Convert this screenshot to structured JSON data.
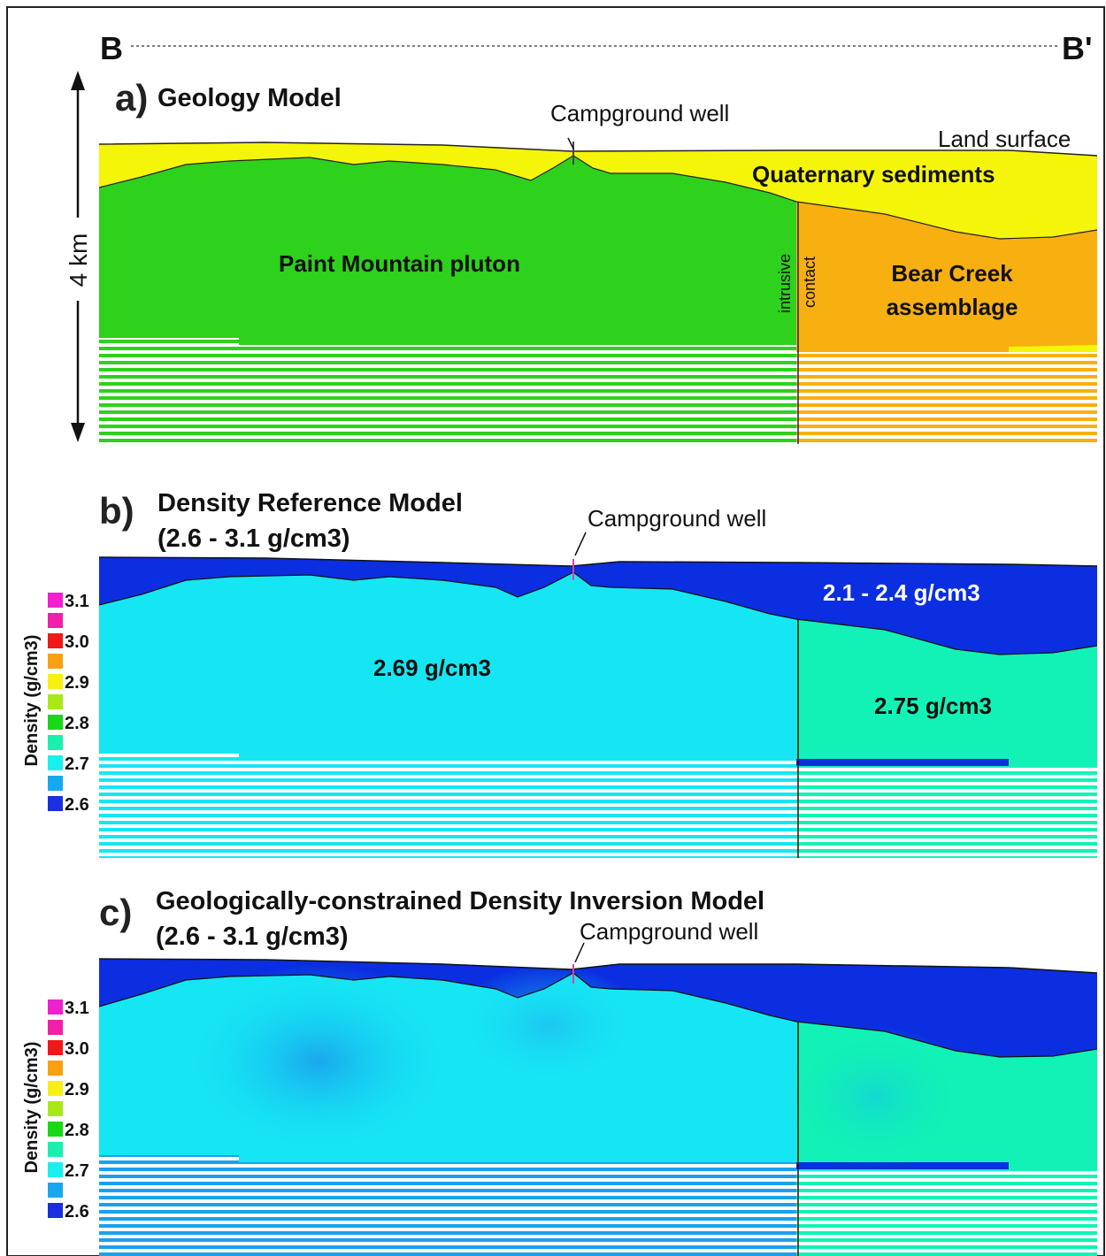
{
  "section": {
    "start_label": "B",
    "end_label": "B'"
  },
  "scale_bar": {
    "label": "4 km"
  },
  "colors": {
    "sediment": "#f5f50a",
    "pluton": "#2ed11c",
    "bear_creek": "#f8b010",
    "low_density": "#0b2ee0",
    "pluton_density": "#16e6f4",
    "bear_creek_density": "#12f2b6",
    "inversion_low": "#1aa0ec"
  },
  "panel_a": {
    "letter": "a)",
    "title": "Geology Model",
    "well": "Campground well",
    "land_surface": "Land surface",
    "sediments": "Quaternary sediments",
    "pluton": "Paint Mountain pluton",
    "contact_1": "intrusive",
    "contact_2": "contact",
    "bear_1": "Bear Creek",
    "bear_2": "assemblage"
  },
  "panel_b": {
    "letter": "b)",
    "title_1": "Density Reference Model",
    "title_2": "(2.6 - 3.1 g/cm3)",
    "well": "Campground well",
    "sediment_density": "2.1 - 2.4 g/cm3",
    "pluton_density": "2.69 g/cm3",
    "bear_density": "2.75 g/cm3"
  },
  "panel_c": {
    "letter": "c)",
    "title_1": "Geologically-constrained Density Inversion Model",
    "title_2": "(2.6 - 3.1 g/cm3)",
    "well": "Campground well"
  },
  "colorbar": {
    "axis_label": "Density (g/cm3)",
    "ticks": [
      "3.1",
      "3.0",
      "2.9",
      "2.8",
      "2.7",
      "2.6"
    ],
    "swatches": [
      "#f020d0",
      "#f020a8",
      "#f01818",
      "#f8a010",
      "#f8f010",
      "#a8e818",
      "#18d818",
      "#18f0b0",
      "#18f0f0",
      "#18a8f0",
      "#1830e0"
    ]
  }
}
